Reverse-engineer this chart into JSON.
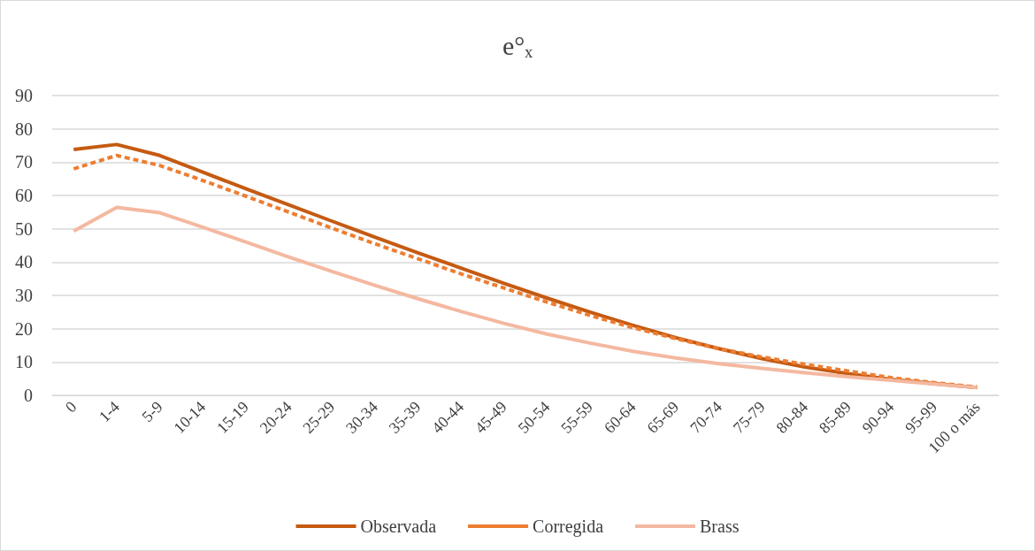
{
  "chart_data": {
    "type": "line",
    "title": "e°ₓ",
    "categories": [
      "0",
      "1-4",
      "5-9",
      "10-14",
      "15-19",
      "20-24",
      "25-29",
      "30-34",
      "35-39",
      "40-44",
      "45-49",
      "50-54",
      "55-59",
      "60-64",
      "65-69",
      "70-74",
      "75-79",
      "80-84",
      "85-89",
      "90-94",
      "95-99",
      "100 o más"
    ],
    "series": [
      {
        "name": "Observada",
        "color": "#c55a11",
        "line_style": "solid",
        "values": [
          73.8,
          75.3,
          72,
          67,
          62,
          57.2,
          52.3,
          47.5,
          42.8,
          38.2,
          33.6,
          29.2,
          25,
          21,
          17.3,
          14,
          11,
          8.5,
          6.5,
          4.8,
          3.5,
          2.3
        ]
      },
      {
        "name": "Corregida",
        "color": "#ed7d31",
        "line_style": "dashed",
        "values": [
          68,
          72,
          69,
          64.5,
          59.8,
          55,
          50.2,
          45.5,
          41,
          36.5,
          32.2,
          28,
          24,
          20.3,
          17,
          14,
          11.5,
          9.3,
          7.3,
          5.3,
          3.8,
          2.5
        ]
      },
      {
        "name": "Brass",
        "color": "#f4b8a0",
        "line_style": "solid",
        "values": [
          49.3,
          56.4,
          54.8,
          50.5,
          46,
          41.5,
          37.2,
          33,
          29,
          25.2,
          21.6,
          18.4,
          15.7,
          13.2,
          11.2,
          9.5,
          8.1,
          6.8,
          5.6,
          4.5,
          3.4,
          2.3
        ]
      }
    ],
    "ylim": [
      0,
      90
    ],
    "yticks": [
      0,
      10,
      20,
      30,
      40,
      50,
      60,
      70,
      80,
      90
    ],
    "grid": "y",
    "legend": "bottom",
    "marker": "none"
  }
}
